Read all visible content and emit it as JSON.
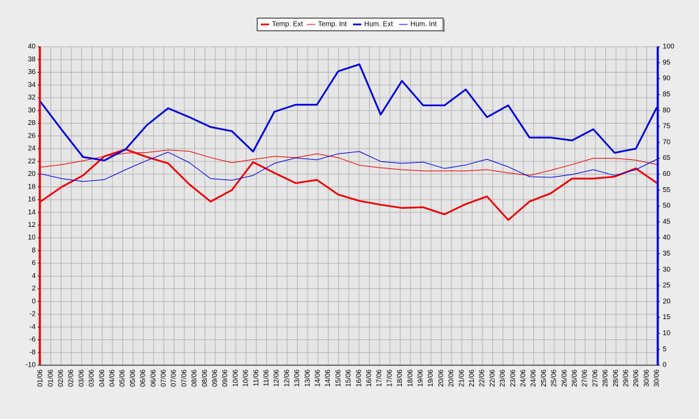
{
  "chart_data": {
    "type": "line",
    "xticks": [
      "01/06",
      "01/06",
      "02/06",
      "02/06",
      "03/06",
      "03/06",
      "04/06",
      "04/06",
      "05/06",
      "05/06",
      "06/06",
      "06/06",
      "07/06",
      "07/06",
      "07/06",
      "08/06",
      "08/06",
      "09/06",
      "09/06",
      "10/06",
      "10/06",
      "11/06",
      "11/06",
      "12/06",
      "12/06",
      "13/06",
      "13/06",
      "14/06",
      "14/06",
      "15/06",
      "15/06",
      "16/06",
      "16/06",
      "17/06",
      "17/06",
      "18/06",
      "18/06",
      "19/06",
      "19/06",
      "20/06",
      "20/06",
      "21/06",
      "21/06",
      "22/06",
      "22/06",
      "23/06",
      "23/06",
      "24/06",
      "24/06",
      "25/06",
      "25/06",
      "26/06",
      "26/06",
      "27/06",
      "27/06",
      "28/06",
      "28/06",
      "29/06",
      "29/06",
      "30/06",
      "30/06"
    ],
    "ylim": [
      -10,
      40
    ],
    "yticks": [
      -10,
      -8,
      -6,
      -4,
      -2,
      0,
      2,
      4,
      6,
      8,
      10,
      12,
      14,
      16,
      18,
      20,
      22,
      24,
      26,
      28,
      30,
      32,
      34,
      36,
      38,
      40
    ],
    "y2lim": [
      0,
      100
    ],
    "y2ticks": [
      0,
      5,
      10,
      15,
      20,
      25,
      30,
      35,
      40,
      45,
      50,
      55,
      60,
      65,
      70,
      75,
      80,
      85,
      90,
      95,
      100
    ],
    "grid": true,
    "legend": "top",
    "series": [
      {
        "name": "Temp. Ext",
        "color": "#ee0000",
        "line_width": 2.5,
        "values": [
          15.7,
          18.0,
          19.8,
          22.8,
          23.9,
          22.7,
          21.7,
          18.4,
          15.7,
          17.5,
          21.9,
          20.2,
          18.6,
          19.1,
          16.8,
          15.8,
          15.2,
          14.7,
          14.8,
          13.7,
          15.3,
          16.5,
          12.8,
          15.7,
          17.0,
          19.3,
          19.3,
          19.6,
          20.9,
          18.6
        ]
      },
      {
        "name": "Temp. Int",
        "color": "#ee0000",
        "line_width": 1,
        "values": [
          21.1,
          21.5,
          22.1,
          22.8,
          23.3,
          23.4,
          23.8,
          23.6,
          22.6,
          21.8,
          22.3,
          22.8,
          22.6,
          23.2,
          22.6,
          21.4,
          21.0,
          20.7,
          20.5,
          20.5,
          20.5,
          20.7,
          20.2,
          19.8,
          20.6,
          21.5,
          22.5,
          22.5,
          22.2,
          21.5
        ]
      },
      {
        "name": "Hum. Ext",
        "color": "#0000dd",
        "line_width": 2.5,
        "axis": "y2",
        "values": [
          82.7,
          73.9,
          65.4,
          64.3,
          67.8,
          75.4,
          80.7,
          77.9,
          74.8,
          73.5,
          67.1,
          79.6,
          81.8,
          81.8,
          92.3,
          94.5,
          78.7,
          89.3,
          81.6,
          81.6,
          86.6,
          77.9,
          81.6,
          71.5,
          71.5,
          70.6,
          74.1,
          66.7,
          68.0,
          81.1
        ]
      },
      {
        "name": "Hum. Int",
        "color": "#0000dd",
        "line_width": 1,
        "axis": "y2",
        "values": [
          60.1,
          58.6,
          57.7,
          58.3,
          61.4,
          64.3,
          66.9,
          63.6,
          58.6,
          58.1,
          59.6,
          63.4,
          65.1,
          64.5,
          66.4,
          67.1,
          64.0,
          63.4,
          63.8,
          61.8,
          62.9,
          64.7,
          62.3,
          59.2,
          59.0,
          59.9,
          61.4,
          59.6,
          61.4,
          64.7
        ]
      }
    ]
  }
}
